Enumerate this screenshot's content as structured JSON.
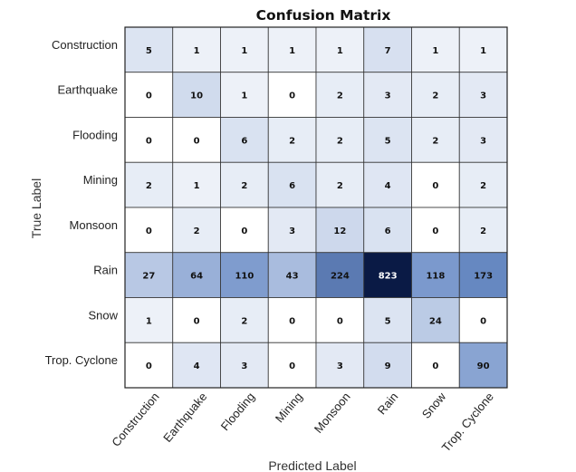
{
  "chart_data": {
    "type": "heatmap",
    "title": "Confusion Matrix",
    "xlabel": "Predicted Label",
    "ylabel": "True Label",
    "x_categories": [
      "Construction",
      "Earthquake",
      "Flooding",
      "Mining",
      "Monsoon",
      "Rain",
      "Snow",
      "Trop. Cyclone"
    ],
    "y_categories": [
      "Construction",
      "Earthquake",
      "Flooding",
      "Mining",
      "Monsoon",
      "Rain",
      "Snow",
      "Trop. Cyclone"
    ],
    "values": [
      [
        5,
        1,
        1,
        1,
        1,
        7,
        1,
        1
      ],
      [
        0,
        10,
        1,
        0,
        2,
        3,
        2,
        3
      ],
      [
        0,
        0,
        6,
        2,
        2,
        5,
        2,
        3
      ],
      [
        2,
        1,
        2,
        6,
        2,
        4,
        0,
        2
      ],
      [
        0,
        2,
        0,
        3,
        12,
        6,
        0,
        2
      ],
      [
        27,
        64,
        110,
        43,
        224,
        823,
        118,
        173
      ],
      [
        1,
        0,
        2,
        0,
        0,
        5,
        24,
        0
      ],
      [
        0,
        4,
        3,
        0,
        3,
        9,
        0,
        90
      ]
    ],
    "colors": {
      "low": "#ffffff",
      "mid": "#6a8cc6",
      "high": "#0a1a45"
    }
  }
}
